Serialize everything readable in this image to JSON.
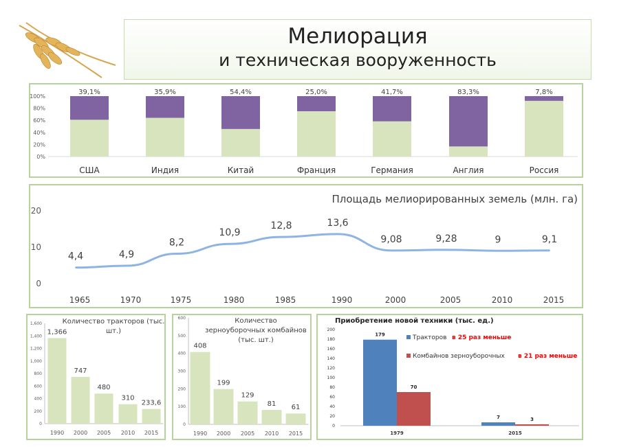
{
  "slide": {
    "title_line1": "Мелиорация",
    "title_line2": "и техническая вооруженность",
    "logo_icon": "wheat-icon"
  },
  "colors": {
    "green": "#d7e4bd",
    "purple": "#8064a2",
    "line": "#8eb4e3",
    "blue": "#4f81bd",
    "red": "#c0504d",
    "border": "#b5d39a",
    "alert": "#ff0000"
  },
  "chart_data": [
    {
      "type": "bar",
      "stacked": true,
      "title": "",
      "categories": [
        "США",
        "Индия",
        "Китай",
        "Франция",
        "Германия",
        "Англия",
        "Россия"
      ],
      "series": [
        {
          "name": "lower",
          "values": [
            60.9,
            64.1,
            45.6,
            75.0,
            58.3,
            16.7,
            92.2
          ]
        },
        {
          "name": "upper",
          "values": [
            39.1,
            35.9,
            54.4,
            25.0,
            41.7,
            83.3,
            7.8
          ]
        }
      ],
      "data_labels": [
        "39,1%",
        "35,9%",
        "54,4%",
        "25,0%",
        "41,7%",
        "83,3%",
        "7,8%"
      ],
      "yticks": [
        "0%",
        "20%",
        "40%",
        "60%",
        "80%",
        "100%"
      ],
      "ylim": [
        0,
        100
      ]
    },
    {
      "type": "line",
      "title": "Площадь мелиорированных земель (млн. га)",
      "categories": [
        "1965",
        "1970",
        "1975",
        "1980",
        "1985",
        "1990",
        "2000",
        "2005",
        "2010",
        "2015"
      ],
      "values": [
        4.4,
        4.9,
        8.2,
        10.9,
        12.8,
        13.6,
        9.08,
        9.28,
        9,
        9.1
      ],
      "data_labels": [
        "4,4",
        "4,9",
        "8,2",
        "10,9",
        "12,8",
        "13,6",
        "9,08",
        "9,28",
        "9",
        "9,1"
      ],
      "yticks": [
        "0",
        "10",
        "20"
      ],
      "ylim": [
        0,
        20
      ]
    },
    {
      "type": "bar",
      "title": "Количество тракторов (тыс. шт.)",
      "title_lines": [
        "Количество тракторов (тыс.",
        "шт.)"
      ],
      "categories": [
        "1990",
        "2000",
        "2005",
        "2010",
        "2015"
      ],
      "values": [
        1366,
        747,
        480,
        310,
        233.6
      ],
      "data_labels": [
        "1,366",
        "747",
        "480",
        "310",
        "233,6"
      ],
      "yticks": [
        "0",
        "200",
        "400",
        "600",
        "800",
        "1,000",
        "1,200",
        "1,400",
        "1,600"
      ],
      "ylim": [
        0,
        1600
      ]
    },
    {
      "type": "bar",
      "title": "Количество зерноуборочных комбайнов (тыс. шт.)",
      "title_lines": [
        "Количество",
        "зерноуборочных комбайнов",
        "(тыс. шт.)"
      ],
      "categories": [
        "1990",
        "2000",
        "2005",
        "2010",
        "2015"
      ],
      "values": [
        408,
        199,
        129,
        81,
        61
      ],
      "data_labels": [
        "408",
        "199",
        "129",
        "81",
        "61"
      ],
      "yticks": [
        "0",
        "100",
        "200",
        "300",
        "400",
        "500",
        "600"
      ],
      "ylim": [
        0,
        600
      ]
    },
    {
      "type": "bar",
      "title": "Приобретение новой техники (тыс. ед.)",
      "categories": [
        "1979",
        "2015"
      ],
      "series": [
        {
          "name": "Тракторов",
          "values": [
            179,
            7
          ],
          "note": "в 25 раз меньше"
        },
        {
          "name": "Комбайнов зерноуборочных",
          "values": [
            70,
            3
          ],
          "note": "в 21 раз меньше"
        }
      ],
      "yticks": [
        "0",
        "20",
        "40",
        "60",
        "80",
        "100",
        "120",
        "140",
        "160",
        "180",
        "200"
      ],
      "ylim": [
        0,
        200
      ],
      "legend": "top-right"
    }
  ]
}
